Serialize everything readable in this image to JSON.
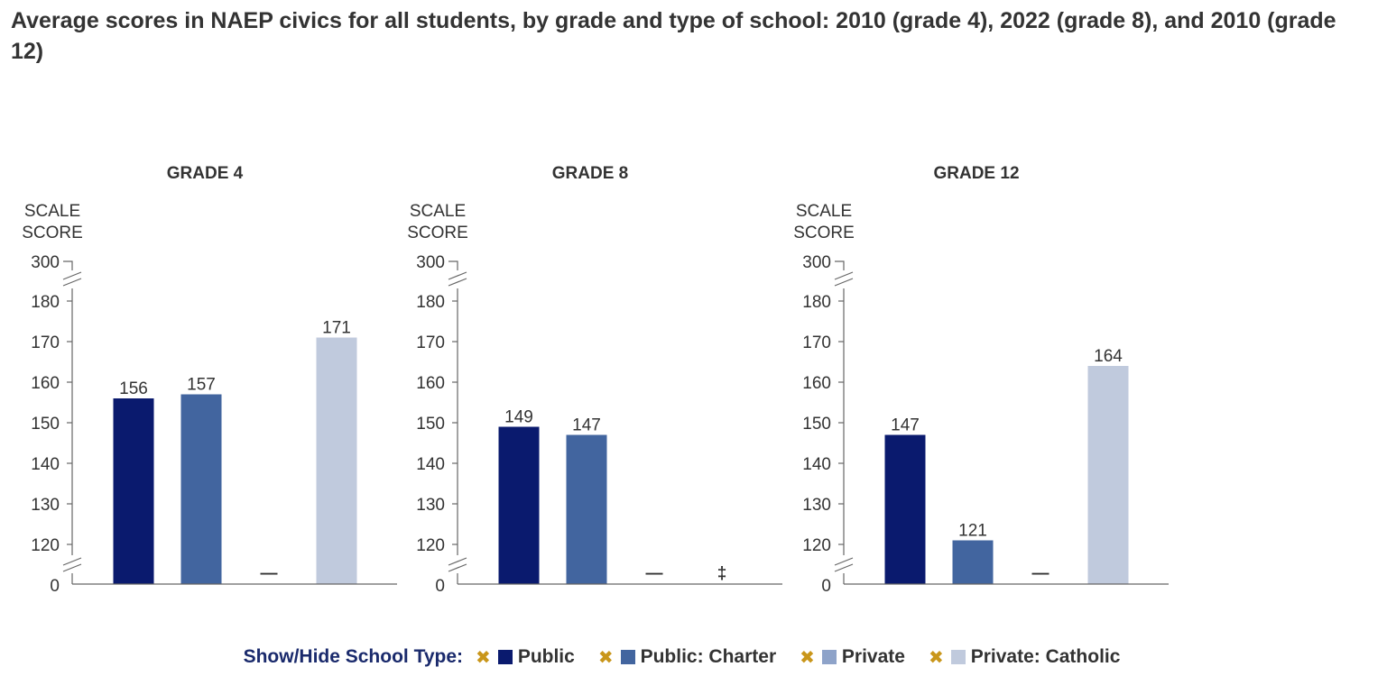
{
  "title": "Average scores in NAEP civics for all students, by grade and type of school: 2010 (grade 4), 2022 (grade 8), and 2010 (grade 12)",
  "legend": {
    "title": "Show/Hide School Type:",
    "toggle_icon": "x-icon",
    "items": [
      {
        "label": "Public",
        "color": "#0a1a6e"
      },
      {
        "label": "Public: Charter",
        "color": "#42659f"
      },
      {
        "label": "Private",
        "color": "#8ea3c9"
      },
      {
        "label": "Private: Catholic",
        "color": "#c0cadd"
      }
    ]
  },
  "chart_data": [
    {
      "type": "bar",
      "title": "GRADE 4",
      "ylabel": "SCALE SCORE",
      "ylim": [
        120,
        180
      ],
      "axis_break": true,
      "yticks_top": "300",
      "yticks": [
        "180",
        "170",
        "160",
        "150",
        "140",
        "130",
        "120"
      ],
      "y_zero_label": "0",
      "categories": [
        "Public",
        "Public: Charter",
        "Private",
        "Private: Catholic"
      ],
      "values": [
        156,
        157,
        null,
        171
      ],
      "data_labels": [
        "156",
        "157",
        "—",
        "171"
      ]
    },
    {
      "type": "bar",
      "title": "GRADE 8",
      "ylabel": "SCALE SCORE",
      "ylim": [
        120,
        180
      ],
      "axis_break": true,
      "yticks_top": "300",
      "yticks": [
        "180",
        "170",
        "160",
        "150",
        "140",
        "130",
        "120"
      ],
      "y_zero_label": "0",
      "categories": [
        "Public",
        "Public: Charter",
        "Private",
        "Private: Catholic"
      ],
      "values": [
        149,
        147,
        null,
        null
      ],
      "data_labels": [
        "149",
        "147",
        "—",
        "‡"
      ]
    },
    {
      "type": "bar",
      "title": "GRADE 12",
      "ylabel": "SCALE SCORE",
      "ylim": [
        120,
        180
      ],
      "axis_break": true,
      "yticks_top": "300",
      "yticks": [
        "180",
        "170",
        "160",
        "150",
        "140",
        "130",
        "120"
      ],
      "y_zero_label": "0",
      "categories": [
        "Public",
        "Public: Charter",
        "Private",
        "Private: Catholic"
      ],
      "values": [
        147,
        121,
        null,
        164
      ],
      "data_labels": [
        "147",
        "121",
        "—",
        "164"
      ]
    }
  ]
}
